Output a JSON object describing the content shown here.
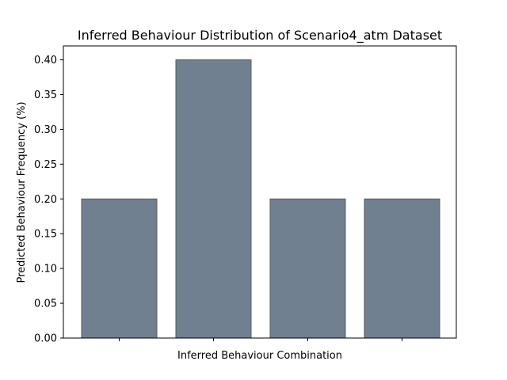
{
  "chart_data": {
    "type": "bar",
    "title": "Inferred Behaviour Distribution of Scenario4_atm Dataset",
    "xlabel": "Inferred Behaviour Combination",
    "ylabel": "Predicted Behaviour Frequency (%)",
    "categories": [
      "",
      "",
      "",
      ""
    ],
    "values": [
      0.2,
      0.4,
      0.2,
      0.2
    ],
    "ylim": [
      0,
      0.42
    ],
    "yticks": [
      "0.00",
      "0.05",
      "0.10",
      "0.15",
      "0.20",
      "0.25",
      "0.30",
      "0.35",
      "0.40"
    ],
    "bar_color": "#708090",
    "bar_edge_color": "#5a5a5a",
    "grid": false,
    "legend": "none"
  }
}
